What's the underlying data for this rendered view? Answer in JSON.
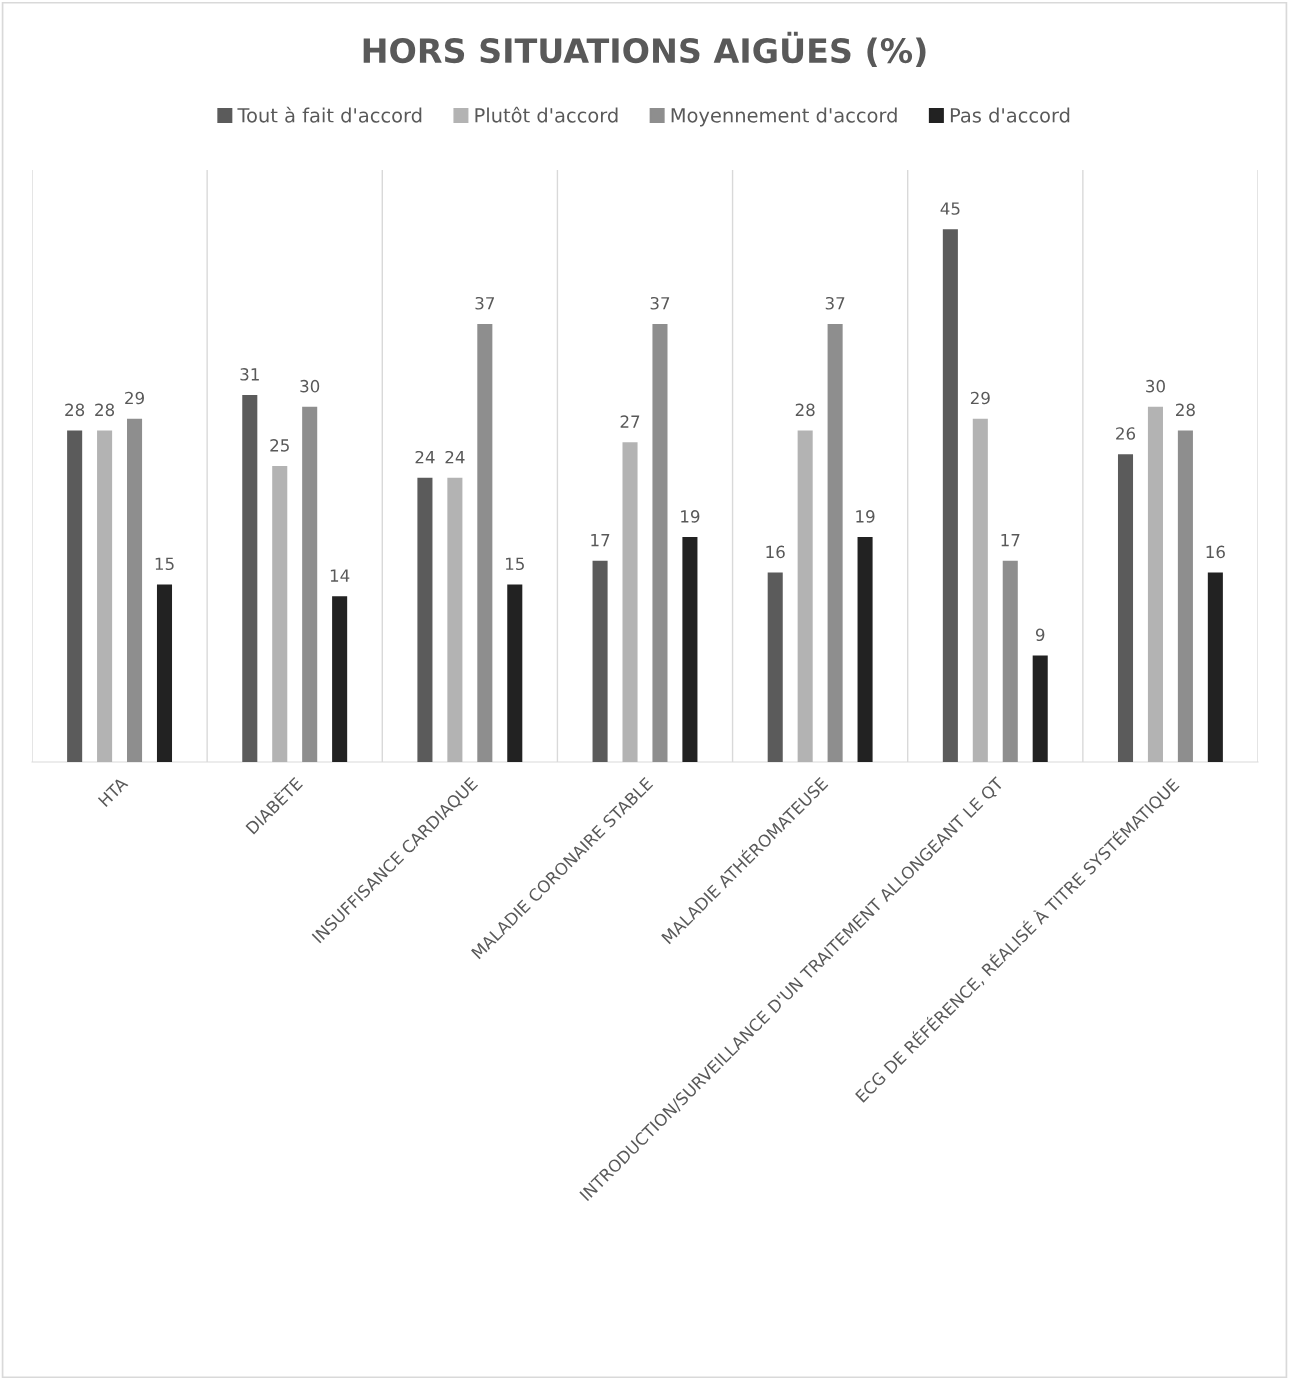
{
  "chart_data": {
    "type": "bar",
    "title": "HORS SITUATIONS AIGÜES (%)",
    "categories": [
      "HTA",
      "DIABÈTE",
      "INSUFFISANCE CARDIAQUE",
      "MALADIE CORONAIRE STABLE",
      "MALADIE ATHÉROMATEUSE",
      "INTRODUCTION/SURVEILLANCE D'UN TRAITEMENT ALLONGEANT LE QT",
      "ECG DE RÉFÉRENCE, RÉALISÉ À TITRE SYSTÉMATIQUE"
    ],
    "series": [
      {
        "name": "Tout à fait d'accord",
        "color": "#5b5b5b",
        "values": [
          28,
          31,
          24,
          17,
          16,
          45,
          26
        ]
      },
      {
        "name": "Plutôt d'accord",
        "color": "#b3b3b3",
        "values": [
          28,
          25,
          24,
          27,
          28,
          29,
          30
        ]
      },
      {
        "name": "Moyennement d'accord",
        "color": "#8e8e8e",
        "values": [
          29,
          30,
          37,
          37,
          37,
          17,
          28
        ]
      },
      {
        "name": "Pas d'accord",
        "color": "#222222",
        "values": [
          15,
          14,
          15,
          19,
          19,
          9,
          16
        ]
      }
    ],
    "ylim": [
      0,
      50
    ],
    "tick_labels": "x",
    "data_labels": true,
    "grid": "x",
    "legend": "top"
  }
}
